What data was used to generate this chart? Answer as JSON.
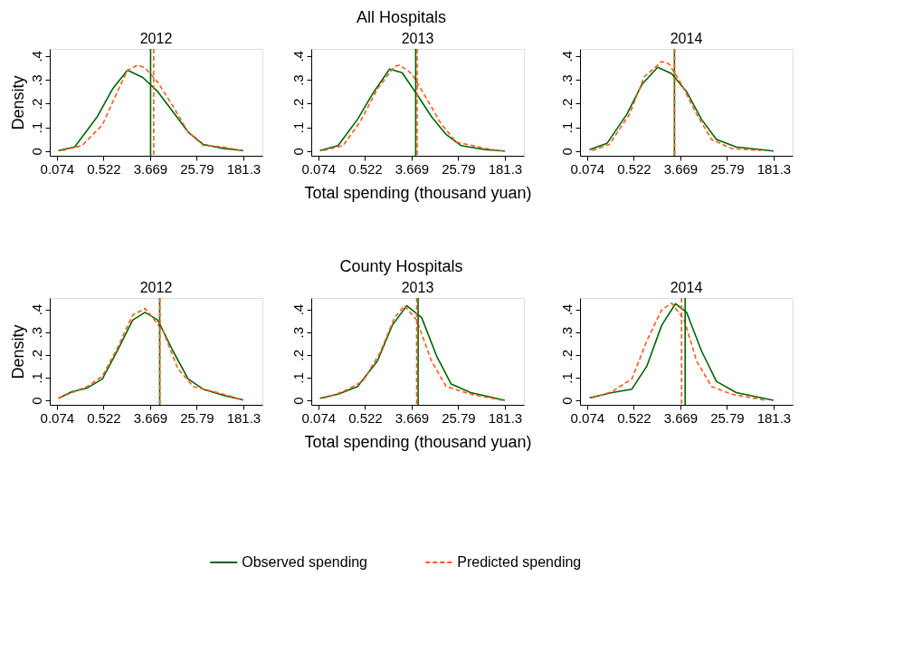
{
  "chart_data": [
    {
      "type": "line",
      "title": "2012",
      "ylabel": "Density",
      "annotations": [
        "All Hospitals"
      ],
      "legend": "bottom",
      "grid": false,
      "marker": "none",
      "log": "x",
      "xlim": [
        0.055,
        403
      ],
      "xticks": [
        0.074,
        0.522,
        3.669,
        25.79,
        181.3
      ],
      "ylim": [
        -0.02,
        0.43
      ],
      "yticks": [
        0,
        {
          "value": 0.1,
          "label": ".1"
        },
        {
          "value": 0.2,
          "label": ".2"
        },
        {
          "value": 0.3,
          "label": ".3"
        },
        {
          "value": 0.4,
          "label": ".4"
        }
      ],
      "series": [
        {
          "name": "Observed spending",
          "color": "#006400",
          "line_style": "solid",
          "x": [
            0.079,
            0.156,
            0.403,
            0.756,
            1.42,
            2.69,
            5.05,
            9.49,
            18.0,
            33.8,
            78.3,
            181
          ],
          "values": [
            0.002,
            0.017,
            0.145,
            0.26,
            0.34,
            0.31,
            0.25,
            0.166,
            0.08,
            0.028,
            0.011,
            0.002
          ]
        },
        {
          "name": "Predicted spending",
          "color": "#ff5a1f",
          "line_style": "dashed",
          "x": [
            0.092,
            0.212,
            0.497,
            0.932,
            1.42,
            2.18,
            2.97,
            5.05,
            9.49,
            18.0,
            33.8,
            78.3,
            164
          ],
          "values": [
            0.002,
            0.023,
            0.11,
            0.25,
            0.34,
            0.362,
            0.35,
            0.29,
            0.19,
            0.08,
            0.024,
            0.017,
            0.002
          ]
        }
      ],
      "ref_lines": [
        {
          "axis": "x",
          "value": 3.74,
          "color": "#006400",
          "line_style": "solid"
        },
        {
          "axis": "x",
          "value": 4.26,
          "color": "#ff5a1f",
          "line_style": "dashed"
        }
      ]
    },
    {
      "type": "line",
      "title": "2013",
      "xlabel": "Total spending (thousand yuan)",
      "grid": false,
      "marker": "none",
      "log": "x",
      "xlim": [
        0.055,
        403
      ],
      "xticks": [
        0.074,
        0.522,
        3.669,
        25.79,
        181.3
      ],
      "ylim": [
        -0.02,
        0.43
      ],
      "yticks": [
        0,
        {
          "value": 0.1,
          "label": ".1"
        },
        {
          "value": 0.2,
          "label": ".2"
        },
        {
          "value": 0.3,
          "label": ".3"
        },
        {
          "value": 0.4,
          "label": ".4"
        }
      ],
      "series": [
        {
          "color": "#006400",
          "line_style": "solid",
          "x": [
            0.079,
            0.169,
            0.383,
            0.712,
            1.46,
            2.46,
            4.53,
            8.41,
            15.5,
            28.8,
            79.8,
            181
          ],
          "values": [
            0.002,
            0.023,
            0.134,
            0.24,
            0.345,
            0.33,
            0.24,
            0.145,
            0.07,
            0.023,
            0.006,
            0
          ]
        },
        {
          "color": "#ff5a1f",
          "line_style": "dashed",
          "x": [
            0.091,
            0.208,
            0.427,
            0.878,
            1.8,
            2.23,
            3.71,
            6.89,
            12.7,
            23.6,
            79.8,
            164
          ],
          "values": [
            0.002,
            0.023,
            0.124,
            0.262,
            0.357,
            0.362,
            0.325,
            0.22,
            0.113,
            0.038,
            0.011,
            0
          ]
        }
      ],
      "ref_lines": [
        {
          "axis": "x",
          "value": 4.35,
          "color": "#006400",
          "line_style": "solid"
        },
        {
          "axis": "x",
          "value": 4.62,
          "color": "#ff5a1f",
          "line_style": "dashed"
        }
      ]
    },
    {
      "type": "line",
      "title": "2014",
      "grid": false,
      "marker": "none",
      "log": "x",
      "xlim": [
        0.055,
        403
      ],
      "xticks": [
        0.074,
        0.522,
        3.669,
        25.79,
        181.3
      ],
      "ylim": [
        -0.02,
        0.43
      ],
      "yticks": [
        0,
        {
          "value": 0.1,
          "label": ".1"
        },
        {
          "value": 0.2,
          "label": ".2"
        },
        {
          "value": 0.3,
          "label": ".3"
        },
        {
          "value": 0.4,
          "label": ".4"
        }
      ],
      "series": [
        {
          "color": "#006400",
          "line_style": "solid",
          "x": [
            0.082,
            0.17,
            0.391,
            0.733,
            1.42,
            2.53,
            4.76,
            8.85,
            16.6,
            38.1,
            181
          ],
          "values": [
            0.006,
            0.032,
            0.155,
            0.28,
            0.353,
            0.326,
            0.25,
            0.134,
            0.049,
            0.017,
            0
          ]
        },
        {
          "color": "#ff5a1f",
          "line_style": "dashed",
          "x": [
            0.092,
            0.188,
            0.436,
            0.811,
            1.68,
            2.29,
            3.86,
            7.24,
            13.5,
            30.9,
            108
          ],
          "values": [
            0.002,
            0.028,
            0.155,
            0.313,
            0.377,
            0.366,
            0.28,
            0.155,
            0.049,
            0.011,
            0.002
          ]
        }
      ],
      "ref_lines": [
        {
          "axis": "x",
          "value": 2.86,
          "color": "#006400",
          "line_style": "solid"
        },
        {
          "axis": "x",
          "value": 2.89,
          "color": "#ff5a1f",
          "line_style": "dashed"
        }
      ]
    },
    {
      "type": "line",
      "title": "2012",
      "ylabel": "Density",
      "annotations": [
        "County Hospitals"
      ],
      "grid": false,
      "marker": "none",
      "log": "x",
      "xlim": [
        0.055,
        403
      ],
      "xticks": [
        0.074,
        0.522,
        3.669,
        25.79,
        181.3
      ],
      "ylim": [
        -0.02,
        0.45
      ],
      "yticks": [
        0,
        {
          "value": 0.1,
          "label": ".1"
        },
        {
          "value": 0.2,
          "label": ".2"
        },
        {
          "value": 0.3,
          "label": ".3"
        },
        {
          "value": 0.4,
          "label": ".4"
        }
      ],
      "series": [
        {
          "color": "#006400",
          "line_style": "solid",
          "x": [
            0.079,
            0.139,
            0.264,
            0.497,
            0.932,
            1.77,
            2.97,
            5.05,
            9.49,
            18.0,
            33.8,
            78.3,
            181
          ],
          "values": [
            0.009,
            0.038,
            0.054,
            0.094,
            0.218,
            0.353,
            0.387,
            0.353,
            0.218,
            0.094,
            0.049,
            0.022,
            0.002
          ]
        },
        {
          "color": "#ff5a1f",
          "line_style": "dashed",
          "x": [
            0.079,
            0.139,
            0.264,
            0.497,
            0.932,
            1.77,
            2.97,
            6.23,
            11.7,
            22.2,
            78.3,
            181
          ],
          "values": [
            0.009,
            0.034,
            0.061,
            0.106,
            0.229,
            0.375,
            0.404,
            0.308,
            0.139,
            0.061,
            0.027,
            0
          ]
        }
      ],
      "ref_lines": [
        {
          "axis": "x",
          "value": 5.47,
          "color": "#006400",
          "line_style": "solid"
        },
        {
          "axis": "x",
          "value": 5.53,
          "color": "#ff5a1f",
          "line_style": "dashed"
        }
      ]
    },
    {
      "type": "line",
      "title": "2013",
      "xlabel": "Total spending (thousand yuan)",
      "grid": false,
      "marker": "none",
      "log": "x",
      "xlim": [
        0.055,
        403
      ],
      "xticks": [
        0.074,
        0.522,
        3.669,
        25.79,
        181.3
      ],
      "ylim": [
        -0.02,
        0.45
      ],
      "yticks": [
        0,
        {
          "value": 0.1,
          "label": ".1"
        },
        {
          "value": 0.2,
          "label": ".2"
        },
        {
          "value": 0.3,
          "label": ".3"
        },
        {
          "value": 0.4,
          "label": ".4"
        }
      ],
      "series": [
        {
          "color": "#006400",
          "line_style": "solid",
          "x": [
            0.079,
            0.169,
            0.383,
            0.878,
            1.63,
            3.0,
            5.58,
            10.4,
            19.1,
            43.4,
            181
          ],
          "values": [
            0.009,
            0.027,
            0.061,
            0.173,
            0.33,
            0.416,
            0.364,
            0.196,
            0.072,
            0.034,
            0
          ]
        },
        {
          "color": "#ff5a1f",
          "line_style": "dashed",
          "x": [
            0.091,
            0.208,
            0.472,
            0.97,
            1.8,
            2.72,
            4.53,
            8.41,
            15.5,
            43.4,
            164
          ],
          "values": [
            0.009,
            0.038,
            0.083,
            0.207,
            0.364,
            0.416,
            0.353,
            0.173,
            0.061,
            0.027,
            0
          ]
        }
      ],
      "ref_lines": [
        {
          "axis": "x",
          "value": 4.81,
          "color": "#006400",
          "line_style": "solid"
        },
        {
          "axis": "x",
          "value": 4.53,
          "color": "#ff5a1f",
          "line_style": "dashed"
        }
      ]
    },
    {
      "type": "line",
      "title": "2014",
      "grid": false,
      "marker": "none",
      "log": "x",
      "xlim": [
        0.055,
        403
      ],
      "xticks": [
        0.074,
        0.522,
        3.669,
        25.79,
        181.3
      ],
      "ylim": [
        -0.02,
        0.45
      ],
      "yticks": [
        0,
        {
          "value": 0.1,
          "label": ".1"
        },
        {
          "value": 0.2,
          "label": ".2"
        },
        {
          "value": 0.3,
          "label": ".3"
        },
        {
          "value": 0.4,
          "label": ".4"
        }
      ],
      "series": [
        {
          "color": "#006400",
          "line_style": "solid",
          "x": [
            0.082,
            0.21,
            0.482,
            0.905,
            1.68,
            3.0,
            4.76,
            8.85,
            16.6,
            38.1,
            181
          ],
          "values": [
            0.011,
            0.034,
            0.049,
            0.151,
            0.33,
            0.425,
            0.387,
            0.218,
            0.083,
            0.034,
            0
          ]
        },
        {
          "color": "#ff5a1f",
          "line_style": "dashed",
          "x": [
            0.092,
            0.21,
            0.482,
            0.905,
            1.68,
            2.56,
            4.31,
            7.24,
            13.5,
            30.9,
            133
          ],
          "values": [
            0.011,
            0.038,
            0.094,
            0.263,
            0.398,
            0.427,
            0.353,
            0.173,
            0.061,
            0.027,
            0
          ]
        }
      ],
      "ref_lines": [
        {
          "axis": "x",
          "value": 4.48,
          "color": "#006400",
          "line_style": "solid"
        },
        {
          "axis": "x",
          "value": 3.86,
          "color": "#ff5a1f",
          "line_style": "dashed"
        }
      ]
    }
  ]
}
